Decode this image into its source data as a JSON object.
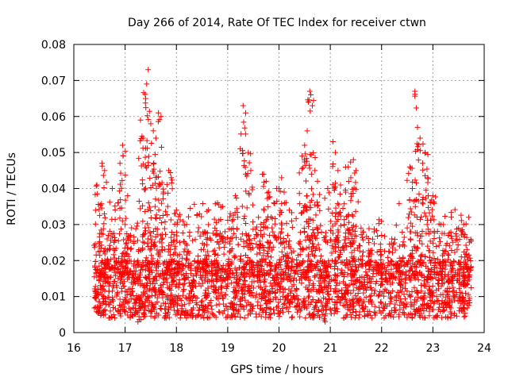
{
  "chart_data": {
    "type": "scatter",
    "title": "Day 266 of 2014, Rate Of TEC Index for receiver ctwn",
    "xlabel": "GPS time / hours",
    "ylabel": "ROTI / TECUs",
    "xlim": [
      16,
      24
    ],
    "ylim": [
      0,
      0.08
    ],
    "grid": true,
    "marker": "+",
    "marker_color": "#ff0000",
    "x_ticks": [
      "16",
      "17",
      "18",
      "19",
      "20",
      "21",
      "22",
      "23",
      "24"
    ],
    "y_ticks": [
      "0",
      "0.01",
      "0.02",
      "0.03",
      "0.04",
      "0.05",
      "0.06",
      "0.07",
      "0.08"
    ],
    "series": [
      {
        "name": "ROTI",
        "x_range": [
          16.4,
          23.75
        ],
        "baseline_range": [
          0.004,
          0.02
        ],
        "points": [
          [
            16.45,
            0.041
          ],
          [
            16.55,
            0.047
          ],
          [
            16.6,
            0.045
          ],
          [
            16.65,
            0.026
          ],
          [
            16.75,
            0.04
          ],
          [
            16.9,
            0.047
          ],
          [
            16.95,
            0.052
          ],
          [
            17.0,
            0.03
          ],
          [
            17.05,
            0.038
          ],
          [
            17.3,
            0.059
          ],
          [
            17.35,
            0.054
          ],
          [
            17.4,
            0.065
          ],
          [
            17.42,
            0.069
          ],
          [
            17.45,
            0.073
          ],
          [
            17.5,
            0.058
          ],
          [
            17.55,
            0.056
          ],
          [
            17.6,
            0.054
          ],
          [
            17.65,
            0.061
          ],
          [
            17.7,
            0.06
          ],
          [
            17.75,
            0.039
          ],
          [
            17.85,
            0.045
          ],
          [
            17.9,
            0.043
          ],
          [
            18.0,
            0.034
          ],
          [
            18.2,
            0.03
          ],
          [
            18.45,
            0.033
          ],
          [
            18.55,
            0.028
          ],
          [
            18.75,
            0.029
          ],
          [
            18.8,
            0.036
          ],
          [
            18.9,
            0.035
          ],
          [
            19.05,
            0.033
          ],
          [
            19.15,
            0.038
          ],
          [
            19.3,
            0.063
          ],
          [
            19.35,
            0.061
          ],
          [
            19.4,
            0.05
          ],
          [
            19.45,
            0.045
          ],
          [
            19.6,
            0.032
          ],
          [
            19.7,
            0.044
          ],
          [
            19.75,
            0.042
          ],
          [
            19.8,
            0.039
          ],
          [
            19.9,
            0.036
          ],
          [
            20.0,
            0.04
          ],
          [
            20.05,
            0.043
          ],
          [
            20.1,
            0.039
          ],
          [
            20.2,
            0.034
          ],
          [
            20.45,
            0.049
          ],
          [
            20.5,
            0.052
          ],
          [
            20.55,
            0.056
          ],
          [
            20.6,
            0.067
          ],
          [
            20.62,
            0.066
          ],
          [
            20.65,
            0.063
          ],
          [
            20.7,
            0.045
          ],
          [
            20.75,
            0.042
          ],
          [
            20.95,
            0.04
          ],
          [
            21.05,
            0.053
          ],
          [
            21.1,
            0.05
          ],
          [
            21.15,
            0.045
          ],
          [
            21.2,
            0.041
          ],
          [
            21.3,
            0.039
          ],
          [
            21.35,
            0.046
          ],
          [
            21.4,
            0.043
          ],
          [
            21.45,
            0.048
          ],
          [
            21.5,
            0.045
          ],
          [
            21.6,
            0.029
          ],
          [
            21.75,
            0.025
          ],
          [
            22.0,
            0.027
          ],
          [
            22.2,
            0.026
          ],
          [
            22.35,
            0.024
          ],
          [
            22.55,
            0.046
          ],
          [
            22.6,
            0.04
          ],
          [
            22.65,
            0.067
          ],
          [
            22.7,
            0.057
          ],
          [
            22.75,
            0.054
          ],
          [
            22.8,
            0.047
          ],
          [
            22.85,
            0.05
          ],
          [
            22.9,
            0.043
          ],
          [
            22.95,
            0.036
          ],
          [
            23.0,
            0.038
          ],
          [
            23.2,
            0.03
          ],
          [
            23.3,
            0.027
          ],
          [
            23.5,
            0.029
          ],
          [
            23.6,
            0.03
          ],
          [
            23.7,
            0.032
          ],
          [
            20.9,
            0.003
          ],
          [
            17.25,
            0.003
          ]
        ]
      }
    ]
  }
}
